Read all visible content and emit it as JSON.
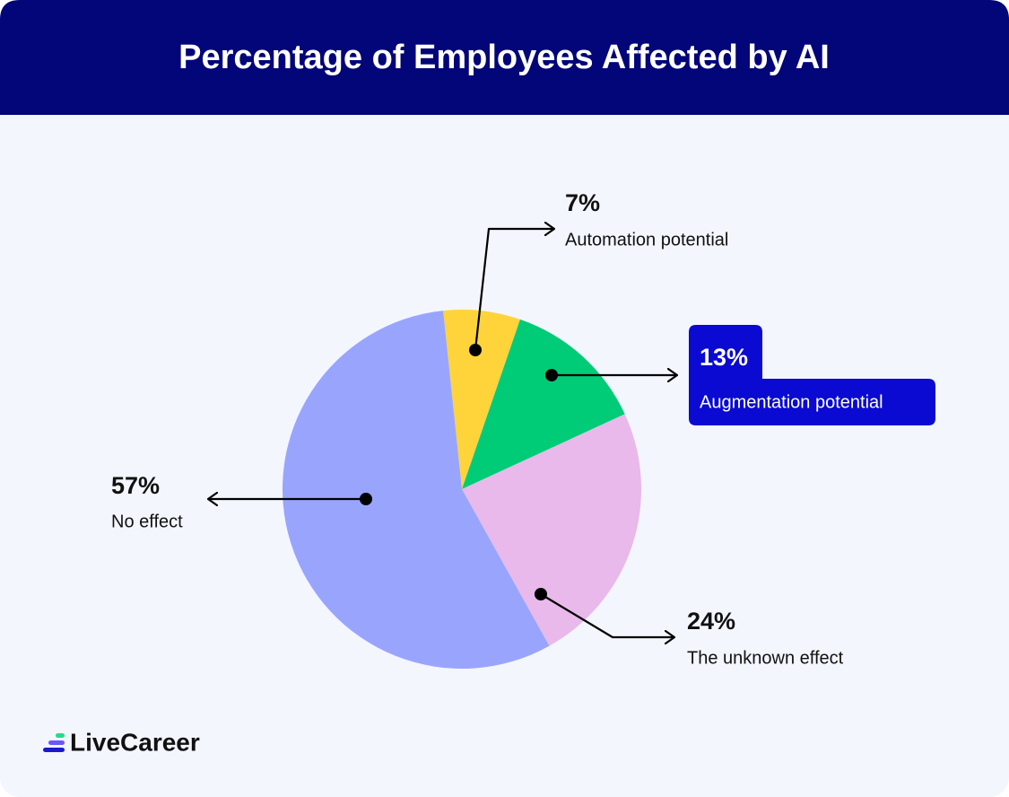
{
  "chart_data": {
    "type": "pie",
    "title": "Percentage of Employees Affected by AI",
    "categories": [
      "Automation potential",
      "Augmentation potential",
      "The unknown effect",
      "No effect"
    ],
    "values": [
      7,
      13,
      24,
      57
    ],
    "value_labels": [
      "7%",
      "13%",
      "24%",
      "57%"
    ],
    "colors": [
      "#ffd43b",
      "#00cc77",
      "#e8b9ea",
      "#99a5fd"
    ]
  },
  "brand": "LiveCareer"
}
